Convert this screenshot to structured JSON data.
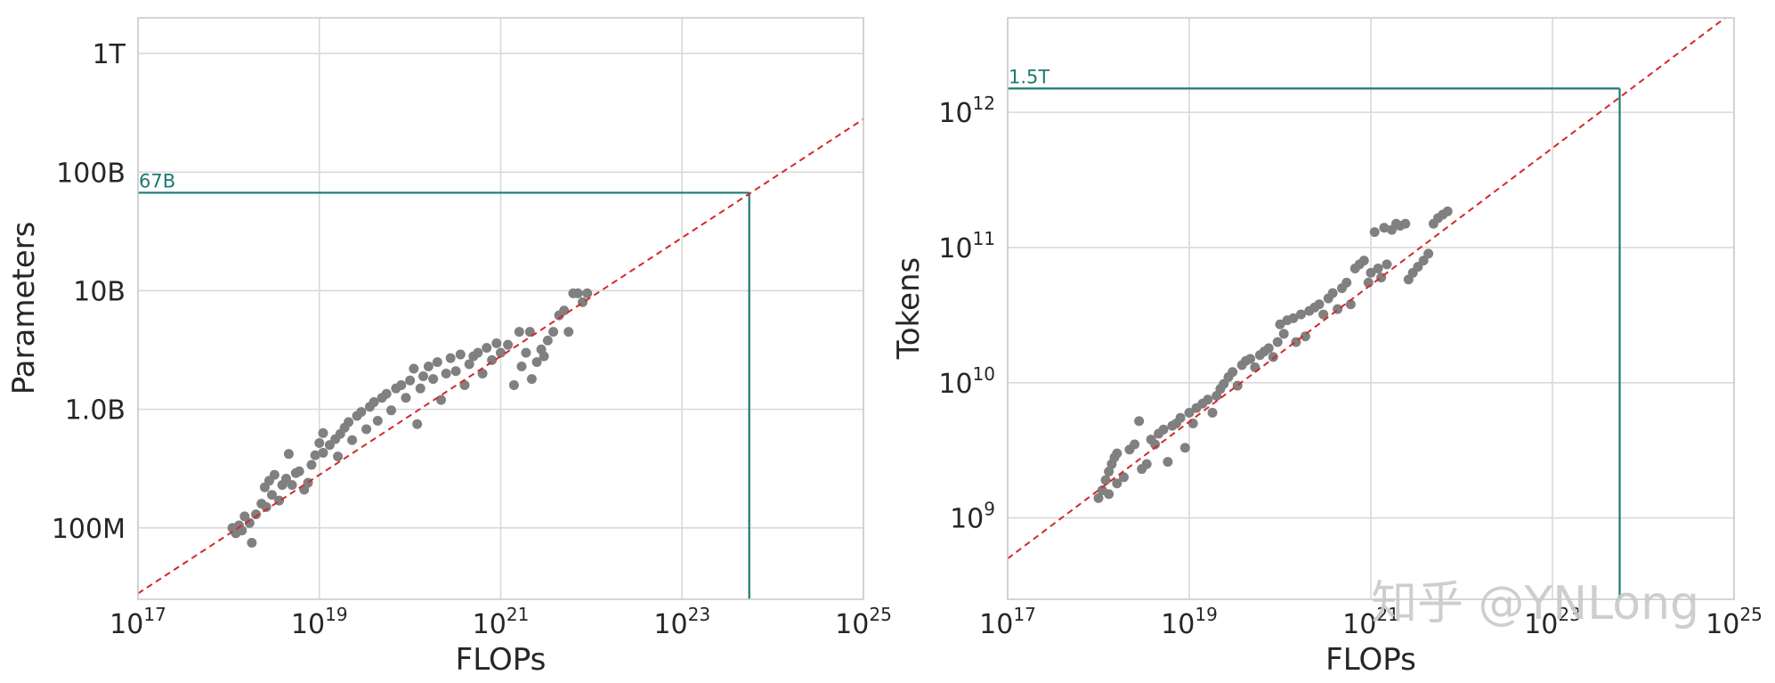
{
  "colors": {
    "points": "#808080",
    "fit_line": "#d62728",
    "annotation": "#1b7a72",
    "grid": "#d9d9d9",
    "frame": "#cccccc"
  },
  "watermark": "知乎 @YNLong",
  "chart_data": [
    {
      "type": "scatter",
      "title": "",
      "xlabel": "FLOPs",
      "ylabel": "Parameters",
      "x_scale": "log",
      "y_scale": "log",
      "xlim": [
        1e+17,
        1e+25
      ],
      "ylim": [
        25000000,
        2000000000000
      ],
      "x_ticks": [
        {
          "base": "10",
          "exp": "17"
        },
        {
          "base": "10",
          "exp": "19"
        },
        {
          "base": "10",
          "exp": "21"
        },
        {
          "base": "10",
          "exp": "23"
        },
        {
          "base": "10",
          "exp": "25"
        }
      ],
      "y_ticks": [
        "100M",
        "1.0B",
        "10B",
        "100B",
        "1T"
      ],
      "grid": true,
      "fit_line": {
        "style": "dashed",
        "from": [
          1e+17,
          28000000
        ],
        "to": [
          1e+25,
          280000000000
        ]
      },
      "annotation": {
        "label": "67B",
        "x": 5.5e+23,
        "y": 67000000000
      },
      "points": [
        [
          1.1e+18,
          100000000.0
        ],
        [
          1.3e+18,
          105000000.0
        ],
        [
          1.5e+18,
          125000000.0
        ],
        [
          1.2e+18,
          90000000.0
        ],
        [
          1.4e+18,
          95000000.0
        ],
        [
          1.8e+18,
          75000000.0
        ],
        [
          1.7e+18,
          110000000.0
        ],
        [
          2e+18,
          130000000.0
        ],
        [
          2.3e+18,
          160000000.0
        ],
        [
          2.6e+18,
          150000000.0
        ],
        [
          2.5e+18,
          220000000.0
        ],
        [
          2.8e+18,
          250000000.0
        ],
        [
          3.2e+18,
          280000000.0
        ],
        [
          3e+18,
          190000000.0
        ],
        [
          3.6e+18,
          170000000.0
        ],
        [
          3.9e+18,
          230000000.0
        ],
        [
          4.3e+18,
          260000000.0
        ],
        [
          4.6e+18,
          420000000.0
        ],
        [
          5e+18,
          230000000.0
        ],
        [
          5.5e+18,
          290000000.0
        ],
        [
          6e+18,
          300000000.0
        ],
        [
          6.8e+18,
          210000000.0
        ],
        [
          7.5e+18,
          240000000.0
        ],
        [
          8.2e+18,
          340000000.0
        ],
        [
          9e+18,
          410000000.0
        ],
        [
          1e+19,
          520000000.0
        ],
        [
          1.1e+19,
          430000000.0
        ],
        [
          1.1e+19,
          630000000.0
        ],
        [
          1.3e+19,
          500000000.0
        ],
        [
          1.5e+19,
          560000000.0
        ],
        [
          1.7e+19,
          620000000.0
        ],
        [
          1.6e+19,
          400000000.0
        ],
        [
          1.9e+19,
          700000000.0
        ],
        [
          2.1e+19,
          780000000.0
        ],
        [
          2.3e+19,
          550000000.0
        ],
        [
          2.6e+19,
          880000000.0
        ],
        [
          2.9e+19,
          950000000.0
        ],
        [
          3.3e+19,
          680000000.0
        ],
        [
          3.6e+19,
          1050000000.0
        ],
        [
          4e+19,
          1150000000.0
        ],
        [
          4.4e+19,
          800000000.0
        ],
        [
          4.9e+19,
          1250000000.0
        ],
        [
          5.5e+19,
          1350000000.0
        ],
        [
          6.2e+19,
          980000000.0
        ],
        [
          7e+19,
          1500000000.0
        ],
        [
          8e+19,
          1600000000.0
        ],
        [
          9e+19,
          1250000000.0
        ],
        [
          1e+20,
          1750000000.0
        ],
        [
          1.1e+20,
          2200000000.0
        ],
        [
          1.2e+20,
          750000000.0
        ],
        [
          1.3e+20,
          1500000000.0
        ],
        [
          1.4e+20,
          1900000000.0
        ],
        [
          1.6e+20,
          2300000000.0
        ],
        [
          1.8e+20,
          1800000000.0
        ],
        [
          2e+20,
          2500000000.0
        ],
        [
          2.2e+20,
          1200000000.0
        ],
        [
          2.5e+20,
          2000000000.0
        ],
        [
          2.8e+20,
          2700000000.0
        ],
        [
          3.2e+20,
          2100000000.0
        ],
        [
          3.6e+20,
          2900000000.0
        ],
        [
          4e+20,
          1600000000.0
        ],
        [
          4.5e+20,
          2400000000.0
        ],
        [
          5e+20,
          2800000000.0
        ],
        [
          5.6e+20,
          3000000000.0
        ],
        [
          6.3e+20,
          2000000000.0
        ],
        [
          7e+20,
          3300000000.0
        ],
        [
          8e+20,
          2600000000.0
        ],
        [
          9e+20,
          3600000000.0
        ],
        [
          1e+21,
          3000000000.0
        ],
        [
          1.2e+21,
          3500000000.0
        ],
        [
          1.4e+21,
          1600000000.0
        ],
        [
          1.6e+21,
          4500000000.0
        ],
        [
          1.7e+21,
          2300000000.0
        ],
        [
          1.9e+21,
          3000000000.0
        ],
        [
          2.1e+21,
          4500000000.0
        ],
        [
          2.2e+21,
          1800000000.0
        ],
        [
          2.5e+21,
          2500000000.0
        ],
        [
          2.8e+21,
          3200000000.0
        ],
        [
          3e+21,
          2800000000.0
        ],
        [
          3.3e+21,
          3800000000.0
        ],
        [
          3.8e+21,
          4500000000.0
        ],
        [
          4.4e+21,
          6200000000.0
        ],
        [
          5e+21,
          6800000000.0
        ],
        [
          5.6e+21,
          4500000000.0
        ],
        [
          6.3e+21,
          9500000000.0
        ],
        [
          7.1e+21,
          9500000000.0
        ],
        [
          8e+21,
          8000000000.0
        ],
        [
          9e+21,
          9500000000.0
        ]
      ]
    },
    {
      "type": "scatter",
      "title": "",
      "xlabel": "FLOPs",
      "ylabel": "Tokens",
      "x_scale": "log",
      "y_scale": "log",
      "xlim": [
        1e+17,
        1e+25
      ],
      "ylim": [
        250000000,
        5000000000000
      ],
      "x_ticks": [
        {
          "base": "10",
          "exp": "17"
        },
        {
          "base": "10",
          "exp": "19"
        },
        {
          "base": "10",
          "exp": "21"
        },
        {
          "base": "10",
          "exp": "23"
        },
        {
          "base": "10",
          "exp": "25"
        }
      ],
      "y_ticks": [
        {
          "base": "10",
          "exp": "9"
        },
        {
          "base": "10",
          "exp": "10"
        },
        {
          "base": "10",
          "exp": "11"
        },
        {
          "base": "10",
          "exp": "12"
        }
      ],
      "grid": true,
      "fit_line": {
        "style": "dashed",
        "from": [
          1e+17,
          500000000
        ],
        "to": [
          8e+24,
          5000000000000
        ]
      },
      "annotation": {
        "label": "1.5T",
        "x": 5.5e+23,
        "y": 1500000000000
      },
      "points": [
        [
          1e+18,
          1400000000.0
        ],
        [
          1.1e+18,
          1600000000.0
        ],
        [
          1.2e+18,
          1900000000.0
        ],
        [
          1.3e+18,
          2200000000.0
        ],
        [
          1.4e+18,
          2500000000.0
        ],
        [
          1.5e+18,
          2800000000.0
        ],
        [
          1.6e+18,
          3000000000.0
        ],
        [
          1.3e+18,
          1500000000.0
        ],
        [
          1.6e+18,
          1800000000.0
        ],
        [
          1.9e+18,
          2000000000.0
        ],
        [
          2.2e+18,
          3200000000.0
        ],
        [
          2.5e+18,
          3500000000.0
        ],
        [
          2.8e+18,
          5200000000.0
        ],
        [
          3e+18,
          2300000000.0
        ],
        [
          3.4e+18,
          2500000000.0
        ],
        [
          3.8e+18,
          3800000000.0
        ],
        [
          4.2e+18,
          3500000000.0
        ],
        [
          4.6e+18,
          4200000000.0
        ],
        [
          5.2e+18,
          4500000000.0
        ],
        [
          5.8e+18,
          2600000000.0
        ],
        [
          6.5e+18,
          4800000000.0
        ],
        [
          7.2e+18,
          5000000000.0
        ],
        [
          8e+18,
          5500000000.0
        ],
        [
          9e+18,
          3300000000.0
        ],
        [
          1e+19,
          6000000000.0
        ],
        [
          1.1e+19,
          5000000000.0
        ],
        [
          1.2e+19,
          6500000000.0
        ],
        [
          1.4e+19,
          7000000000.0
        ],
        [
          1.6e+19,
          7500000000.0
        ],
        [
          1.8e+19,
          6000000000.0
        ],
        [
          2e+19,
          8000000000.0
        ],
        [
          2.2e+19,
          9000000000.0
        ],
        [
          2.4e+19,
          9800000000.0
        ],
        [
          2.7e+19,
          11000000000.0
        ],
        [
          3e+19,
          12000000000.0
        ],
        [
          3.4e+19,
          9500000000.0
        ],
        [
          3.8e+19,
          13500000000.0
        ],
        [
          4.2e+19,
          14500000000.0
        ],
        [
          4.7e+19,
          15000000000.0
        ],
        [
          5.3e+19,
          13000000000.0
        ],
        [
          6e+19,
          16000000000.0
        ],
        [
          6.7e+19,
          17000000000.0
        ],
        [
          7.5e+19,
          18000000000.0
        ],
        [
          8.4e+19,
          15500000000.0
        ],
        [
          9.4e+19,
          20000000000.0
        ],
        [
          1e+20,
          27000000000.0
        ],
        [
          1.1e+20,
          23000000000.0
        ],
        [
          1.2e+20,
          29000000000.0
        ],
        [
          1.4e+20,
          30000000000.0
        ],
        [
          1.5e+20,
          20000000000.0
        ],
        [
          1.7e+20,
          32000000000.0
        ],
        [
          1.9e+20,
          22000000000.0
        ],
        [
          2.1e+20,
          34000000000.0
        ],
        [
          2.4e+20,
          36000000000.0
        ],
        [
          2.7e+20,
          38000000000.0
        ],
        [
          3e+20,
          32000000000.0
        ],
        [
          3.4e+20,
          42000000000.0
        ],
        [
          3.8e+20,
          46000000000.0
        ],
        [
          4.3e+20,
          35000000000.0
        ],
        [
          4.8e+20,
          50000000000.0
        ],
        [
          5.4e+20,
          55000000000.0
        ],
        [
          6e+20,
          38000000000.0
        ],
        [
          6.7e+20,
          70000000000.0
        ],
        [
          7.5e+20,
          75000000000.0
        ],
        [
          8.4e+20,
          80000000000.0
        ],
        [
          9.4e+20,
          55000000000.0
        ],
        [
          1e+21,
          65000000000.0
        ],
        [
          1.1e+21,
          130000000000.0
        ],
        [
          1.2e+21,
          70000000000.0
        ],
        [
          1.3e+21,
          60000000000.0
        ],
        [
          1.4e+21,
          140000000000.0
        ],
        [
          1.5e+21,
          75000000000.0
        ],
        [
          1.7e+21,
          135000000000.0
        ],
        [
          1.9e+21,
          150000000000.0
        ],
        [
          2.1e+21,
          145000000000.0
        ],
        [
          2.4e+21,
          150000000000.0
        ],
        [
          2.6e+21,
          58000000000.0
        ],
        [
          2.9e+21,
          65000000000.0
        ],
        [
          3.3e+21,
          72000000000.0
        ],
        [
          3.8e+21,
          80000000000.0
        ],
        [
          4.3e+21,
          90000000000.0
        ],
        [
          4.9e+21,
          150000000000.0
        ],
        [
          5.5e+21,
          165000000000.0
        ],
        [
          6.2e+21,
          175000000000.0
        ],
        [
          7e+21,
          185000000000.0
        ]
      ]
    }
  ]
}
